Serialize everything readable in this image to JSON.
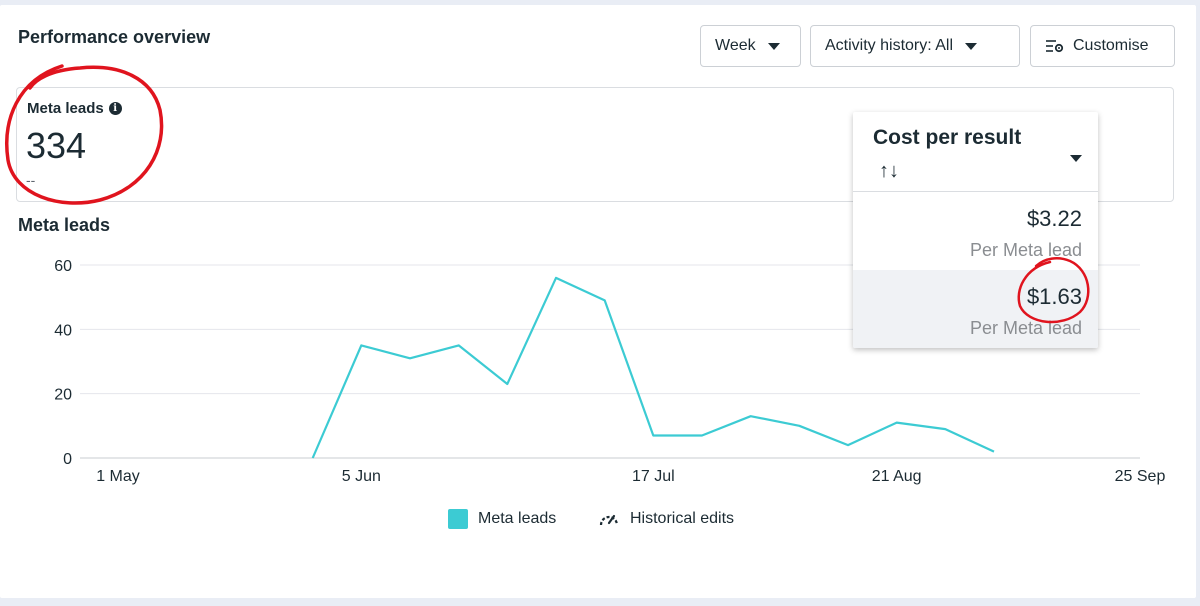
{
  "header": {
    "title": "Performance overview",
    "week_label": "Week",
    "activity_label": "Activity history: All",
    "customise_label": "Customise"
  },
  "metric": {
    "label": "Meta leads",
    "value": "334",
    "sub": "--"
  },
  "chart_title": "Meta leads",
  "dropdown": {
    "title": "Cost per result",
    "sort_glyph": "↑↓",
    "rows": [
      {
        "price": "$3.22",
        "per": "Per Meta lead"
      },
      {
        "price": "$1.63",
        "per": "Per Meta lead"
      }
    ]
  },
  "legend": {
    "series": "Meta leads",
    "edits": "Historical edits"
  },
  "colors": {
    "series": "#3ccbd3",
    "annotation": "#e0141e"
  },
  "chart_data": {
    "type": "line",
    "title": "Meta leads",
    "xlabel": "",
    "ylabel": "",
    "ylim": [
      0,
      60
    ],
    "yticks": [
      "0",
      "20",
      "40",
      "60"
    ],
    "xticks": [
      "1 May",
      "5 Jun",
      "17 Jul",
      "21 Aug",
      "25 Sep"
    ],
    "grid": true,
    "legend": "bottom",
    "series": [
      {
        "name": "Meta leads",
        "x": [
          "2024-05-29",
          "2024-06-05",
          "2024-06-12",
          "2024-06-19",
          "2024-06-26",
          "2024-07-03",
          "2024-07-10",
          "2024-07-17",
          "2024-07-24",
          "2024-07-31",
          "2024-08-07",
          "2024-08-14",
          "2024-08-21",
          "2024-08-28",
          "2024-09-04"
        ],
        "values": [
          0,
          35,
          31,
          35,
          23,
          56,
          49,
          7,
          7,
          13,
          10,
          4,
          11,
          9,
          2
        ]
      }
    ]
  }
}
